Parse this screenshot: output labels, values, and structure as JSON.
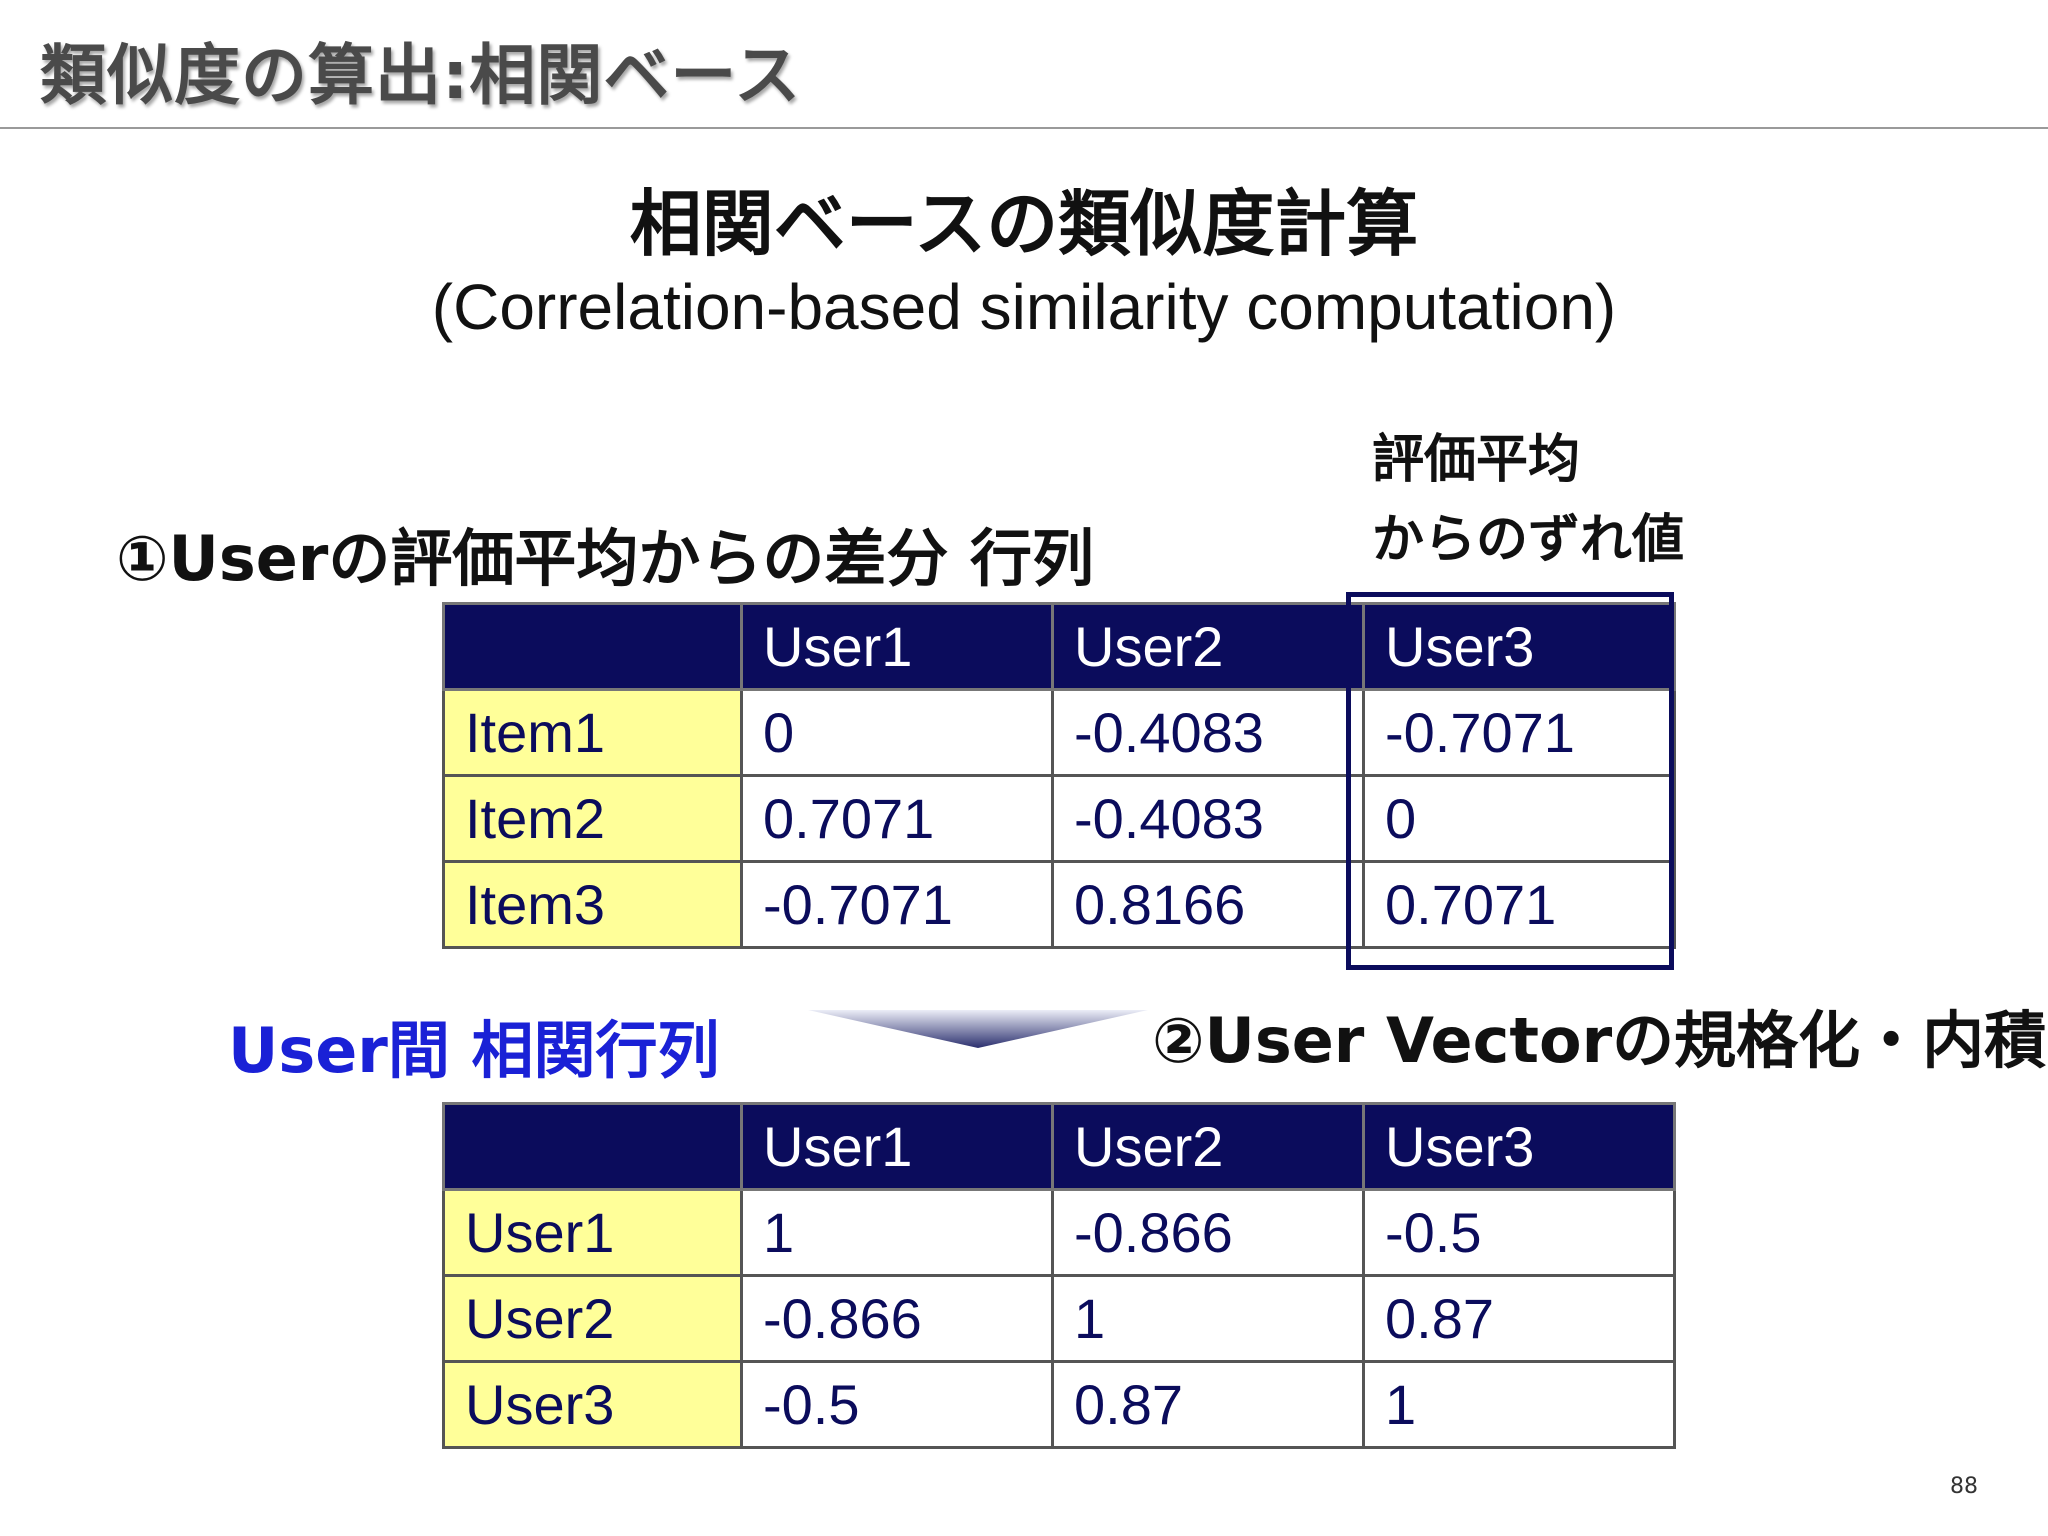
{
  "header": {
    "title": "類似度の算出:相関ベース"
  },
  "main_title": "相関ベースの類似度計算",
  "subtitle": "(Correlation-based similarity computation)",
  "section1_label": "①Userの評価平均からの差分 行列",
  "note": {
    "line1": "評価平均",
    "line2": "からのずれ値"
  },
  "table1": {
    "columns": [
      "",
      "User1",
      "User2",
      "User3"
    ],
    "rows": [
      {
        "label": "Item1",
        "values": [
          "0",
          "-0.4083",
          "-0.7071"
        ]
      },
      {
        "label": "Item2",
        "values": [
          "0.7071",
          "-0.4083",
          "0"
        ]
      },
      {
        "label": "Item3",
        "values": [
          "-0.7071",
          "0.8166",
          "0.7071"
        ]
      }
    ]
  },
  "section2_label": "User間 相関行列",
  "section3_label": "②User Vectorの規格化・内積",
  "table2": {
    "columns": [
      "",
      "User1",
      "User2",
      "User3"
    ],
    "rows": [
      {
        "label": "User1",
        "values": [
          "1",
          "-0.866",
          "-0.5"
        ]
      },
      {
        "label": "User2",
        "values": [
          "-0.866",
          "1",
          "0.87"
        ]
      },
      {
        "label": "User3",
        "values": [
          "-0.5",
          "0.87",
          "1"
        ]
      }
    ]
  },
  "colors": {
    "header_fill": "#0b0c5c",
    "row_label_fill": "#ffff99",
    "accent_blue": "#1a21d6"
  },
  "page_number": "88"
}
